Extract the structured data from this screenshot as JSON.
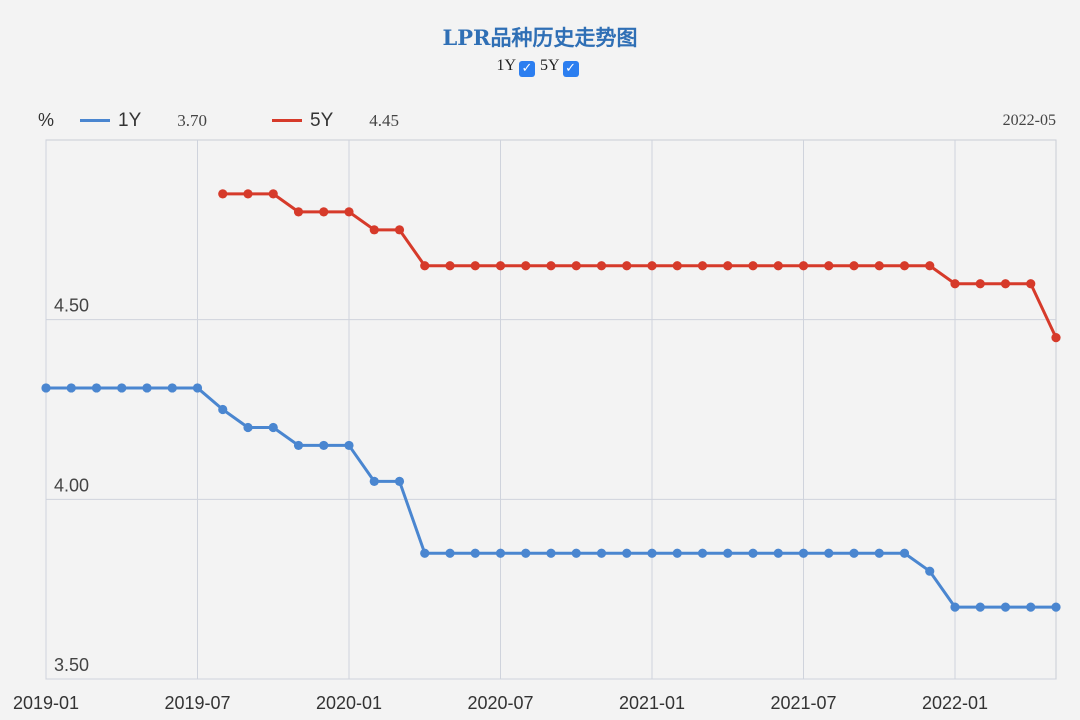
{
  "title": "LPR品种历史走势图",
  "toggles": [
    {
      "label": "1Y",
      "checked": true
    },
    {
      "label": "5Y",
      "checked": true
    }
  ],
  "legend": {
    "y_unit": "%",
    "items": [
      {
        "name": "1Y",
        "value": "3.70",
        "color": "#4a86d0"
      },
      {
        "name": "5Y",
        "value": "4.45",
        "color": "#d63a2a"
      }
    ],
    "date": "2022-05"
  },
  "chart_data": {
    "type": "line",
    "title": "LPR品种历史走势图",
    "x_tick_labels": [
      "2019-01",
      "2019-07",
      "2020-01",
      "2020-07",
      "2021-01",
      "2021-07",
      "2022-01"
    ],
    "y_tick_labels": [
      "3.50",
      "4.00",
      "4.50"
    ],
    "ylim": [
      3.5,
      5.0
    ],
    "grid": true,
    "legend_position": "top-left",
    "x": [
      "2019-01",
      "2019-02",
      "2019-03",
      "2019-04",
      "2019-05",
      "2019-06",
      "2019-07",
      "2019-08",
      "2019-09",
      "2019-10",
      "2019-11",
      "2019-12",
      "2020-01",
      "2020-02",
      "2020-03",
      "2020-04",
      "2020-05",
      "2020-06",
      "2020-07",
      "2020-08",
      "2020-09",
      "2020-10",
      "2020-11",
      "2020-12",
      "2021-01",
      "2021-02",
      "2021-03",
      "2021-04",
      "2021-05",
      "2021-06",
      "2021-07",
      "2021-08",
      "2021-09",
      "2021-10",
      "2021-11",
      "2021-12",
      "2022-01",
      "2022-02",
      "2022-03",
      "2022-04",
      "2022-05"
    ],
    "series": [
      {
        "name": "1Y",
        "color": "#4a86d0",
        "values": [
          4.31,
          4.31,
          4.31,
          4.31,
          4.31,
          4.31,
          4.31,
          4.25,
          4.2,
          4.2,
          4.15,
          4.15,
          4.15,
          4.05,
          4.05,
          3.85,
          3.85,
          3.85,
          3.85,
          3.85,
          3.85,
          3.85,
          3.85,
          3.85,
          3.85,
          3.85,
          3.85,
          3.85,
          3.85,
          3.85,
          3.85,
          3.85,
          3.85,
          3.85,
          3.85,
          3.8,
          3.7,
          3.7,
          3.7,
          3.7,
          3.7
        ]
      },
      {
        "name": "5Y",
        "color": "#d63a2a",
        "values": [
          null,
          null,
          null,
          null,
          null,
          null,
          null,
          4.85,
          4.85,
          4.85,
          4.8,
          4.8,
          4.8,
          4.75,
          4.75,
          4.65,
          4.65,
          4.65,
          4.65,
          4.65,
          4.65,
          4.65,
          4.65,
          4.65,
          4.65,
          4.65,
          4.65,
          4.65,
          4.65,
          4.65,
          4.65,
          4.65,
          4.65,
          4.65,
          4.65,
          4.65,
          4.6,
          4.6,
          4.6,
          4.6,
          4.45
        ]
      }
    ]
  }
}
